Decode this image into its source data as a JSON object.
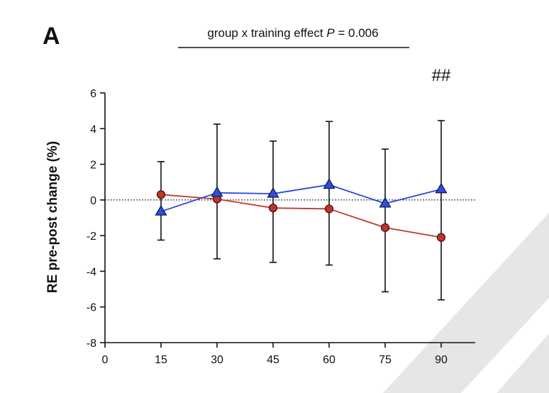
{
  "panel_label": "A",
  "annotation": {
    "prefix": "group x training effect ",
    "p_symbol": "P",
    "suffix": " = 0.006"
  },
  "significance_marker": "##",
  "colors": {
    "blue": "#2f47d6",
    "red": "#c23a2c",
    "red_marker": "#c0352b",
    "blue_marker": "#2e4fd8",
    "axis": "#111111",
    "watermark": "#e6e6e6"
  },
  "chart_data": {
    "type": "line",
    "title": "",
    "xlabel": "",
    "ylabel": "RE pre-post change (%)",
    "x_ticks": [
      0,
      15,
      30,
      45,
      60,
      75,
      90
    ],
    "y_ticks": [
      6,
      4,
      2,
      0,
      -2,
      -4,
      -6,
      -8
    ],
    "xlim": [
      0,
      96
    ],
    "ylim": [
      -8,
      6
    ],
    "reference_line": 0,
    "series": [
      {
        "name": "blue triangles",
        "marker": "triangle",
        "color": "#2f47d6",
        "x": [
          15,
          30,
          45,
          60,
          75,
          90
        ],
        "values": [
          -0.65,
          0.4,
          0.35,
          0.85,
          -0.2,
          0.6
        ],
        "error_upper": [
          2.15,
          4.25,
          3.3,
          4.4,
          2.85,
          4.45
        ],
        "error_lower": [
          -2.25,
          -3.3,
          -3.5,
          -3.65,
          -5.15,
          -5.6
        ]
      },
      {
        "name": "red circles",
        "marker": "circle",
        "color": "#c23a2c",
        "x": [
          15,
          30,
          45,
          60,
          75,
          90
        ],
        "values": [
          0.3,
          0.05,
          -0.45,
          -0.5,
          -1.55,
          -2.1
        ]
      }
    ]
  }
}
